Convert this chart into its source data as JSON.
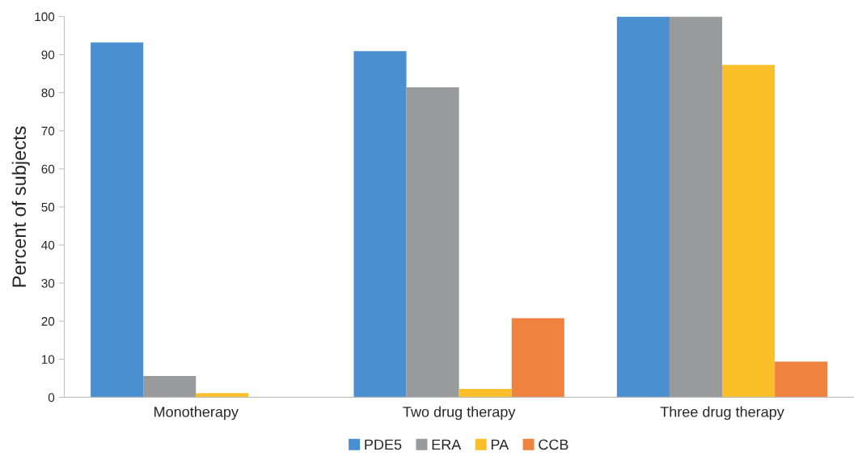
{
  "chart_data": {
    "type": "bar",
    "ylabel": "Percent of subjects",
    "categories": [
      "Monotherapy",
      "Two drug therapy",
      "Three drug therapy"
    ],
    "series": [
      {
        "name": "PDE5",
        "color": "#4a8fd0",
        "values": [
          93.2,
          90.9,
          100
        ]
      },
      {
        "name": "ERA",
        "color": "#999a9c",
        "values": [
          5.6,
          81.4,
          100
        ]
      },
      {
        "name": "PA",
        "color": "#fbbf2a",
        "values": [
          1.1,
          2.2,
          87.3
        ]
      },
      {
        "name": "CCB",
        "color": "#f0823f",
        "values": [
          null,
          20.8,
          9.4
        ]
      }
    ],
    "ylim": [
      0,
      100
    ],
    "yticks": [
      0,
      10,
      20,
      30,
      40,
      50,
      60,
      70,
      80,
      90,
      100
    ],
    "grid": false,
    "legend": "bottom"
  }
}
